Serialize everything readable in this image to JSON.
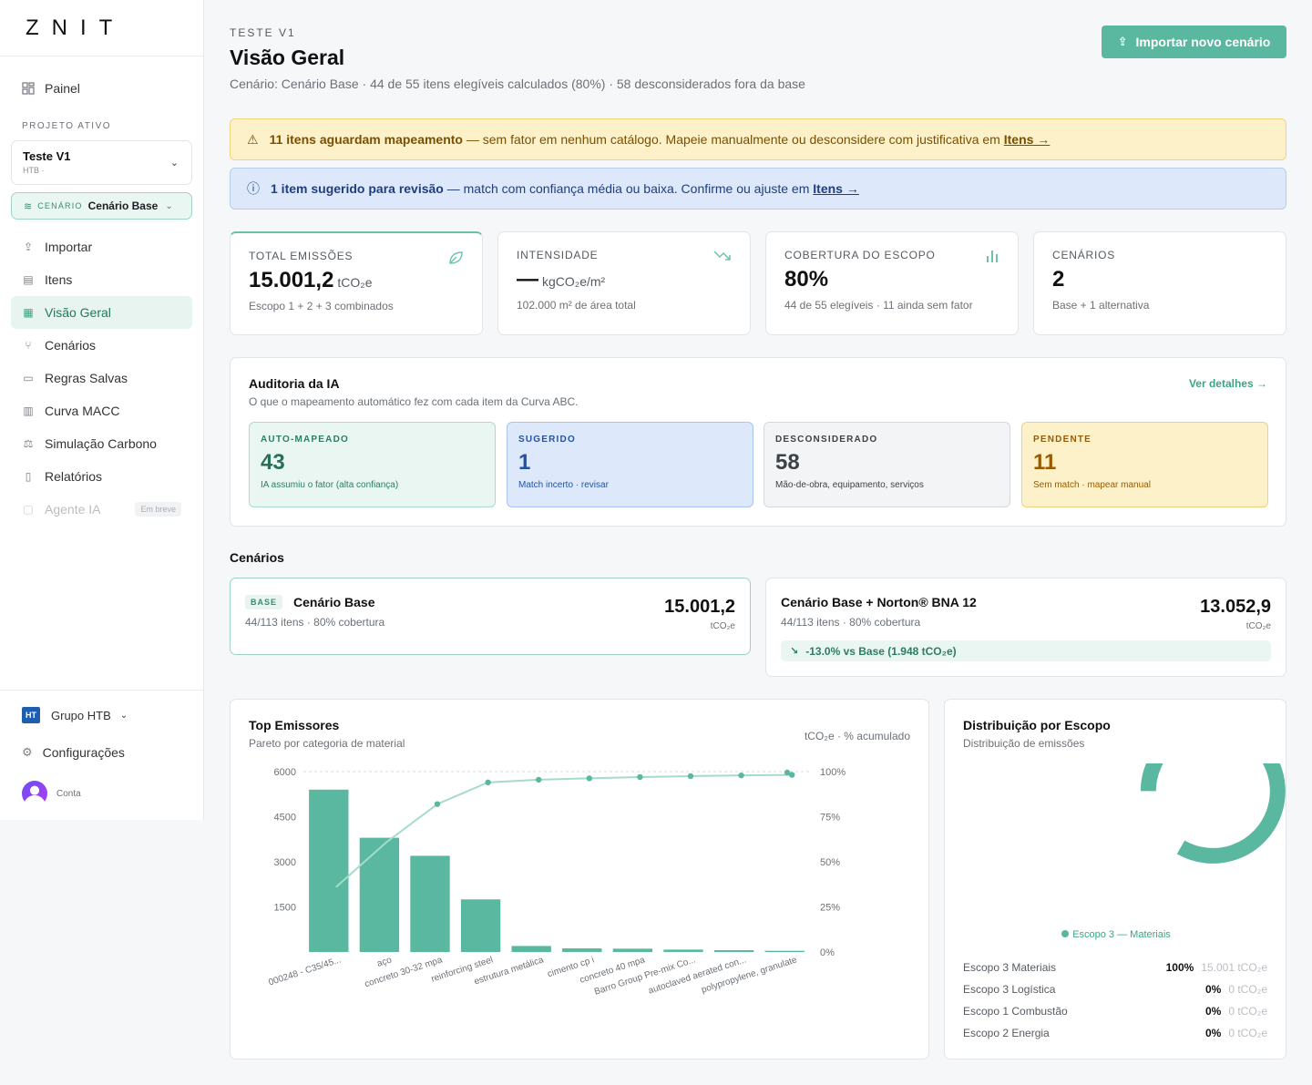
{
  "brand": "ZNIT",
  "sidebar": {
    "panel": "Painel",
    "section_label": "PROJETO ATIVO",
    "project": {
      "name": "Teste V1",
      "sub": "HTB ·"
    },
    "scenario": {
      "label": "CENÁRIO",
      "value": "Cenário Base"
    },
    "items": [
      {
        "label": "Importar",
        "icon": "upload-icon"
      },
      {
        "label": "Itens",
        "icon": "table-icon"
      },
      {
        "label": "Visão Geral",
        "icon": "grid-icon",
        "active": true
      },
      {
        "label": "Cenários",
        "icon": "branch-icon"
      },
      {
        "label": "Regras Salvas",
        "icon": "book-icon"
      },
      {
        "label": "Curva MACC",
        "icon": "bar-chart-icon"
      },
      {
        "label": "Simulação Carbono",
        "icon": "scale-icon"
      },
      {
        "label": "Relatórios",
        "icon": "document-icon"
      },
      {
        "label": "Agente IA",
        "icon": "chat-icon",
        "disabled": true,
        "badge": "Em breve"
      }
    ],
    "org": {
      "logo": "HT",
      "name": "Grupo HTB"
    },
    "settings": "Configurações",
    "account": "Conta"
  },
  "header": {
    "kicker": "TESTE V1",
    "title": "Visão Geral",
    "subtitle": "Cenário: Cenário Base · 44 de 55 itens elegíveis calculados (80%) · 58 desconsiderados fora da base",
    "import_button": "Importar novo cenário"
  },
  "alerts": {
    "warn": {
      "bold": "11 itens aguardam mapeamento",
      "text": " — sem fator em nenhum catálogo. Mapeie manualmente ou desconsidere com justificativa em ",
      "link": "Itens →"
    },
    "info": {
      "bold": "1 item sugerido para revisão",
      "text": " — match com confiança média ou baixa. Confirme ou ajuste em ",
      "link": "Itens →"
    }
  },
  "kpis": [
    {
      "label": "TOTAL EMISSÕES",
      "value": "15.001,2",
      "unit": "tCO₂e",
      "desc": "Escopo 1 + 2 + 3 combinados",
      "icon": "leaf-icon"
    },
    {
      "label": "INTENSIDADE",
      "value": "—",
      "unit": "kgCO₂e/m²",
      "desc": "102.000 m² de área total",
      "icon": "trend-down-icon"
    },
    {
      "label": "COBERTURA DO ESCOPO",
      "value": "80%",
      "unit": "",
      "desc": "44 de 55 elegíveis · 11 ainda sem fator",
      "icon": "bar-chart-icon"
    },
    {
      "label": "CENÁRIOS",
      "value": "2",
      "unit": "",
      "desc": "Base + 1 alternativa",
      "icon": ""
    }
  ],
  "audit": {
    "title": "Auditoria da IA",
    "subtitle": "O que o mapeamento automático fez com cada item da Curva ABC.",
    "link": "Ver detalhes →",
    "tiles": [
      {
        "label": "AUTO-MAPEADO",
        "value": "43",
        "desc": "IA assumiu o fator (alta confiança)"
      },
      {
        "label": "SUGERIDO",
        "value": "1",
        "desc": "Match incerto · revisar"
      },
      {
        "label": "DESCONSIDERADO",
        "value": "58",
        "desc": "Mão-de-obra, equipamento, serviços"
      },
      {
        "label": "PENDENTE",
        "value": "11",
        "desc": "Sem match · mapear manual"
      }
    ]
  },
  "scenarios": {
    "title": "Cenários",
    "base": {
      "tag": "BASE",
      "name": "Cenário Base",
      "meta": "44/113 itens · 80% cobertura",
      "value": "15.001,2",
      "unit": "tCO₂e"
    },
    "alt": {
      "name": "Cenário Base + Norton® BNA 12",
      "meta": "44/113 itens · 80% cobertura",
      "value": "13.052,9",
      "unit": "tCO₂e",
      "delta": "-13.0% vs Base (1.948 tCO₂e)"
    }
  },
  "top_emitters": {
    "title": "Top Emissores",
    "subtitle": "Pareto por categoria de material",
    "meta": "tCO₂e · % acumulado"
  },
  "distribution": {
    "title": "Distribuição por Escopo",
    "subtitle": "Distribuição de emissões",
    "legend": "Escopo 3 — Materiais",
    "rows": [
      {
        "label": "Escopo 3 Materiais",
        "pct": "100%",
        "amt": "15.001 tCO₂e"
      },
      {
        "label": "Escopo 3 Logística",
        "pct": "0%",
        "amt": "0 tCO₂e"
      },
      {
        "label": "Escopo 1 Combustão",
        "pct": "0%",
        "amt": "0 tCO₂e"
      },
      {
        "label": "Escopo 2 Energia",
        "pct": "0%",
        "amt": "0 tCO₂e"
      }
    ]
  },
  "chart_data": [
    {
      "type": "bar",
      "title": "Top Emissores",
      "categories": [
        "000248 - C35/45...",
        "aço",
        "concreto 30-32 mpa",
        "reinforcing steel",
        "estrutura metálica",
        "cimento cp i",
        "concreto 40 mpa",
        "Barro Group Pre-mix Co...",
        "autoclaved aerated con...",
        "polypropylene, granulate"
      ],
      "series": [
        {
          "values": [
            5400,
            3800,
            3200,
            1750,
            200,
            120,
            110,
            80,
            60,
            40
          ],
          "axis": "left"
        },
        {
          "type": "line",
          "values": [
            36,
            61,
            82,
            94,
            95.5,
            96.3,
            97,
            97.5,
            97.9,
            98.2
          ],
          "axis": "right"
        }
      ],
      "yticks": [
        0,
        1500,
        3000,
        4500,
        6000
      ],
      "y2ticks": [
        "0%",
        "25%",
        "50%",
        "75%",
        "100%"
      ],
      "ylim": [
        0,
        6000
      ],
      "y2lim": [
        0,
        100
      ]
    },
    {
      "type": "pie",
      "title": "Distribuição por Escopo",
      "categories": [
        "Escopo 3 Materiais",
        "Escopo 3 Logística",
        "Escopo 1 Combustão",
        "Escopo 2 Energia"
      ],
      "values": [
        100,
        0,
        0,
        0
      ]
    }
  ],
  "colors": {
    "accent": "#5bb8a0",
    "accent_dark": "#2d7d65"
  }
}
